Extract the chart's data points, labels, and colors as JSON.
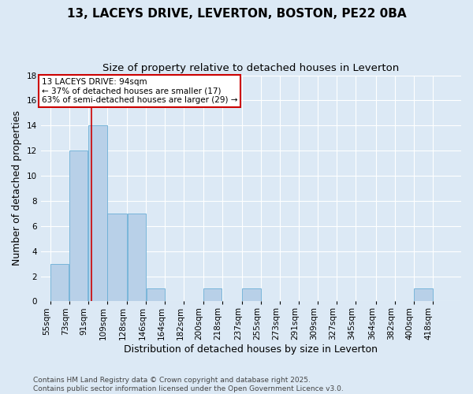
{
  "title": "13, LACEYS DRIVE, LEVERTON, BOSTON, PE22 0BA",
  "subtitle": "Size of property relative to detached houses in Leverton",
  "xlabel": "Distribution of detached houses by size in Leverton",
  "ylabel": "Number of detached properties",
  "bin_labels": [
    "55sqm",
    "73sqm",
    "91sqm",
    "109sqm",
    "128sqm",
    "146sqm",
    "164sqm",
    "182sqm",
    "200sqm",
    "218sqm",
    "237sqm",
    "255sqm",
    "273sqm",
    "291sqm",
    "309sqm",
    "327sqm",
    "345sqm",
    "364sqm",
    "382sqm",
    "400sqm",
    "418sqm"
  ],
  "bin_edges": [
    55,
    73,
    91,
    109,
    128,
    146,
    164,
    182,
    200,
    218,
    237,
    255,
    273,
    291,
    309,
    327,
    345,
    364,
    382,
    400,
    418,
    436
  ],
  "bar_heights": [
    3,
    12,
    14,
    7,
    7,
    1,
    0,
    0,
    1,
    0,
    1,
    0,
    0,
    0,
    0,
    0,
    0,
    0,
    0,
    1,
    0
  ],
  "bar_color": "#b8d0e8",
  "bar_edgecolor": "#6aaed6",
  "property_value": 94,
  "vline_color": "#cc0000",
  "annotation_line1": "13 LACEYS DRIVE: 94sqm",
  "annotation_line2": "← 37% of detached houses are smaller (17)",
  "annotation_line3": "63% of semi-detached houses are larger (29) →",
  "annotation_box_edgecolor": "#cc0000",
  "annotation_box_facecolor": "#ffffff",
  "ylim": [
    0,
    18
  ],
  "yticks": [
    0,
    2,
    4,
    6,
    8,
    10,
    12,
    14,
    16,
    18
  ],
  "background_color": "#dce9f5",
  "plot_background": "#dce9f5",
  "grid_color": "#ffffff",
  "footer_line1": "Contains HM Land Registry data © Crown copyright and database right 2025.",
  "footer_line2": "Contains public sector information licensed under the Open Government Licence v3.0.",
  "title_fontsize": 11,
  "subtitle_fontsize": 9.5,
  "axis_label_fontsize": 9,
  "tick_fontsize": 7.5,
  "annotation_fontsize": 7.5,
  "footer_fontsize": 6.5
}
